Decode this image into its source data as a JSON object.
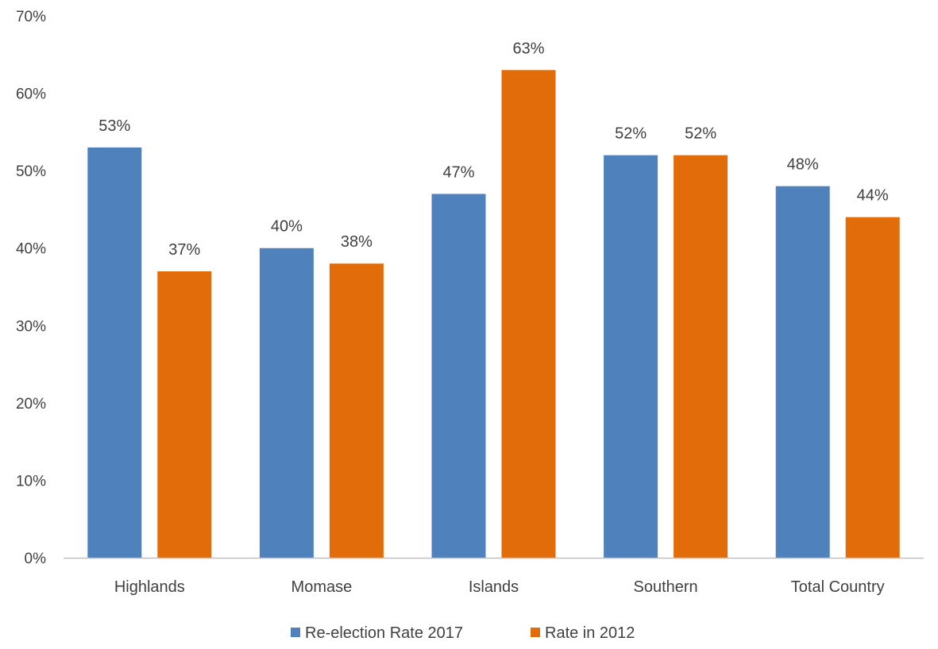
{
  "chart_data": {
    "type": "bar",
    "categories": [
      "Highlands",
      "Momase",
      "Islands",
      "Southern",
      "Total Country"
    ],
    "series": [
      {
        "name": "Re-election Rate 2017",
        "values": [
          53,
          40,
          47,
          52,
          48
        ],
        "labels": [
          "53%",
          "40%",
          "47%",
          "52%",
          "48%"
        ],
        "color": "#4f81bd"
      },
      {
        "name": "Rate in 2012",
        "values": [
          37,
          38,
          63,
          52,
          44
        ],
        "labels": [
          "37%",
          "38%",
          "63%",
          "52%",
          "44%"
        ],
        "color": "#e36c0a"
      }
    ],
    "yticks": [
      0,
      10,
      20,
      30,
      40,
      50,
      60,
      70
    ],
    "ytick_labels": [
      "0%",
      "10%",
      "20%",
      "30%",
      "40%",
      "50%",
      "60%",
      "70%"
    ],
    "ylim": [
      0,
      70
    ],
    "grid": false,
    "legend_position": "bottom",
    "axis_color": "#bfbfbf"
  }
}
